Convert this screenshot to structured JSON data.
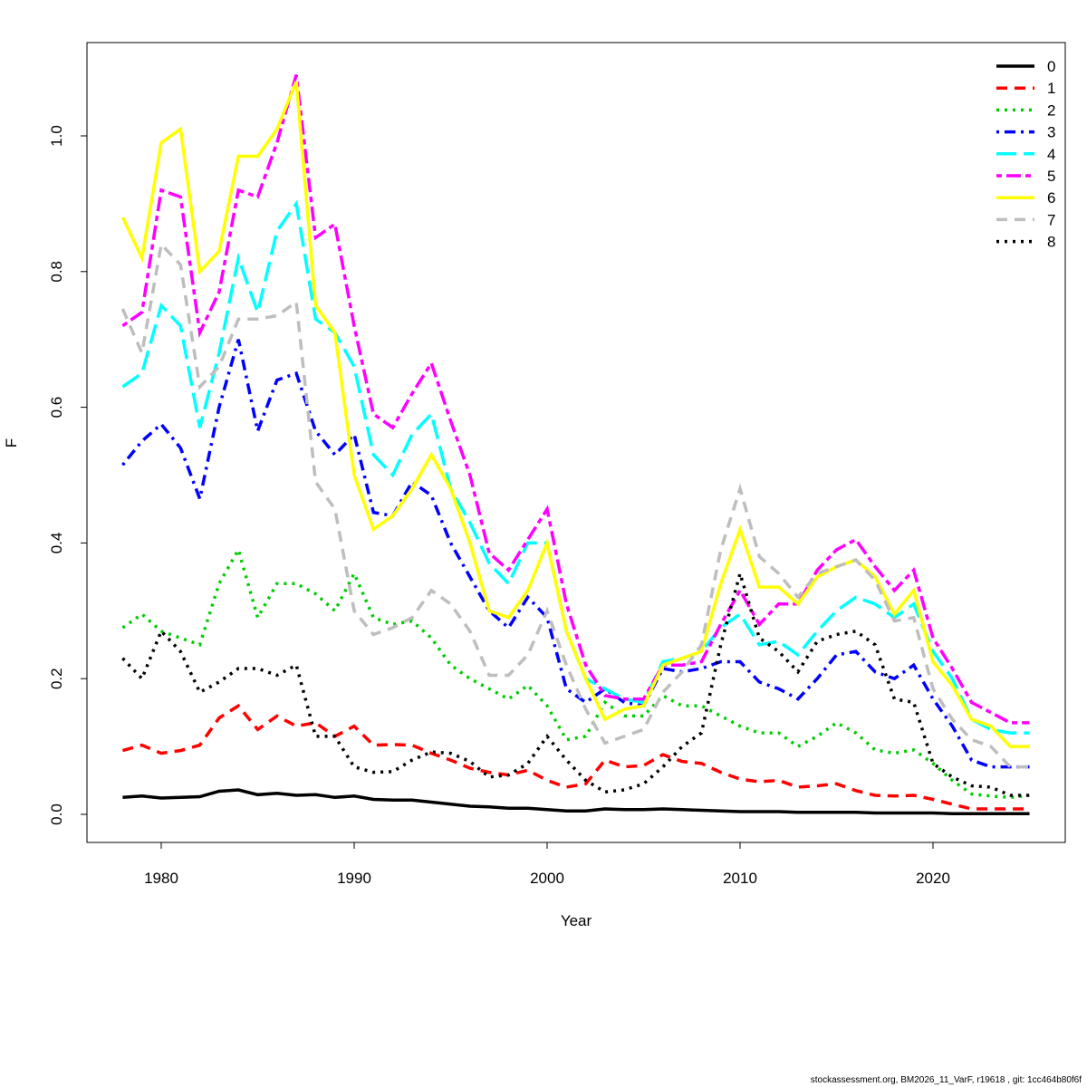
{
  "chart_data": {
    "type": "line",
    "title": "",
    "xlabel": "Year",
    "ylabel": "F",
    "xlim": [
      1976,
      2027
    ],
    "ylim": [
      -0.04,
      1.13
    ],
    "xticks": [
      1980,
      1990,
      2000,
      2010,
      2020
    ],
    "yticks": [
      "0.0",
      "0.2",
      "0.4",
      "0.6",
      "0.8",
      "1.0"
    ],
    "grid": false,
    "legend_position": "top-right",
    "x": [
      1978,
      1979,
      1980,
      1981,
      1982,
      1983,
      1984,
      1985,
      1986,
      1987,
      1988,
      1989,
      1990,
      1991,
      1992,
      1993,
      1994,
      1995,
      1996,
      1997,
      1998,
      1999,
      2000,
      2001,
      2002,
      2003,
      2004,
      2005,
      2006,
      2007,
      2008,
      2009,
      2010,
      2011,
      2012,
      2013,
      2014,
      2015,
      2016,
      2017,
      2018,
      2019,
      2020,
      2021,
      2022,
      2023,
      2024,
      2025
    ],
    "series": [
      {
        "name": "0",
        "color": "#000000",
        "dash": "solid",
        "values": [
          0.025,
          0.027,
          0.024,
          0.025,
          0.026,
          0.034,
          0.036,
          0.029,
          0.031,
          0.028,
          0.029,
          0.025,
          0.027,
          0.022,
          0.021,
          0.021,
          0.018,
          0.015,
          0.012,
          0.011,
          0.009,
          0.009,
          0.007,
          0.005,
          0.005,
          0.008,
          0.007,
          0.007,
          0.008,
          0.007,
          0.006,
          0.005,
          0.004,
          0.004,
          0.004,
          0.003,
          0.003,
          0.003,
          0.003,
          0.002,
          0.002,
          0.002,
          0.002,
          0.001,
          0.001,
          0.001,
          0.001,
          0.001
        ]
      },
      {
        "name": "1",
        "color": "#ff0000",
        "dash": "dashed",
        "values": [
          0.094,
          0.102,
          0.09,
          0.094,
          0.102,
          0.142,
          0.16,
          0.125,
          0.145,
          0.13,
          0.135,
          0.115,
          0.13,
          0.102,
          0.103,
          0.102,
          0.09,
          0.08,
          0.068,
          0.062,
          0.058,
          0.065,
          0.05,
          0.04,
          0.045,
          0.08,
          0.07,
          0.072,
          0.088,
          0.078,
          0.075,
          0.062,
          0.052,
          0.048,
          0.05,
          0.04,
          0.042,
          0.045,
          0.035,
          0.028,
          0.027,
          0.028,
          0.022,
          0.015,
          0.008,
          0.008,
          0.008,
          0.008
        ]
      },
      {
        "name": "2",
        "color": "#00cd00",
        "dash": "dotted",
        "values": [
          0.275,
          0.295,
          0.27,
          0.26,
          0.25,
          0.34,
          0.39,
          0.29,
          0.34,
          0.34,
          0.325,
          0.3,
          0.355,
          0.29,
          0.28,
          0.285,
          0.26,
          0.22,
          0.2,
          0.185,
          0.17,
          0.19,
          0.16,
          0.11,
          0.115,
          0.165,
          0.145,
          0.145,
          0.175,
          0.16,
          0.16,
          0.145,
          0.13,
          0.12,
          0.12,
          0.1,
          0.115,
          0.135,
          0.12,
          0.095,
          0.09,
          0.095,
          0.075,
          0.05,
          0.03,
          0.027,
          0.025,
          0.028
        ]
      },
      {
        "name": "3",
        "color": "#0000ff",
        "dash": "dotdash",
        "values": [
          0.515,
          0.55,
          0.575,
          0.54,
          0.465,
          0.6,
          0.7,
          0.565,
          0.64,
          0.65,
          0.565,
          0.53,
          0.56,
          0.445,
          0.44,
          0.49,
          0.47,
          0.4,
          0.35,
          0.3,
          0.275,
          0.32,
          0.29,
          0.185,
          0.165,
          0.185,
          0.165,
          0.16,
          0.215,
          0.21,
          0.215,
          0.225,
          0.225,
          0.195,
          0.185,
          0.17,
          0.2,
          0.235,
          0.24,
          0.21,
          0.2,
          0.22,
          0.17,
          0.13,
          0.08,
          0.07,
          0.07,
          0.07
        ]
      },
      {
        "name": "4",
        "color": "#00ffff",
        "dash": "longdash",
        "values": [
          0.63,
          0.65,
          0.75,
          0.72,
          0.57,
          0.68,
          0.82,
          0.74,
          0.86,
          0.9,
          0.73,
          0.71,
          0.66,
          0.53,
          0.5,
          0.56,
          0.59,
          0.48,
          0.43,
          0.37,
          0.34,
          0.4,
          0.4,
          0.27,
          0.2,
          0.185,
          0.17,
          0.165,
          0.225,
          0.23,
          0.24,
          0.275,
          0.295,
          0.25,
          0.255,
          0.235,
          0.27,
          0.3,
          0.32,
          0.31,
          0.29,
          0.31,
          0.24,
          0.2,
          0.14,
          0.125,
          0.12,
          0.12
        ]
      },
      {
        "name": "5",
        "color": "#ff00ff",
        "dash": "twodash",
        "values": [
          0.72,
          0.74,
          0.92,
          0.91,
          0.71,
          0.77,
          0.92,
          0.91,
          0.99,
          1.09,
          0.85,
          0.87,
          0.72,
          0.59,
          0.57,
          0.62,
          0.665,
          0.58,
          0.5,
          0.385,
          0.36,
          0.405,
          0.45,
          0.31,
          0.22,
          0.175,
          0.17,
          0.17,
          0.22,
          0.22,
          0.225,
          0.28,
          0.33,
          0.28,
          0.31,
          0.31,
          0.36,
          0.39,
          0.405,
          0.365,
          0.33,
          0.36,
          0.26,
          0.215,
          0.165,
          0.15,
          0.135,
          0.135
        ]
      },
      {
        "name": "6",
        "color": "#ffff00",
        "dash": "solid",
        "values": [
          0.88,
          0.82,
          0.99,
          1.01,
          0.8,
          0.83,
          0.97,
          0.97,
          1.01,
          1.08,
          0.75,
          0.71,
          0.5,
          0.42,
          0.44,
          0.48,
          0.53,
          0.48,
          0.4,
          0.3,
          0.29,
          0.33,
          0.4,
          0.27,
          0.2,
          0.14,
          0.155,
          0.16,
          0.22,
          0.23,
          0.24,
          0.34,
          0.42,
          0.335,
          0.335,
          0.31,
          0.35,
          0.365,
          0.375,
          0.35,
          0.295,
          0.33,
          0.225,
          0.19,
          0.14,
          0.13,
          0.1,
          0.1
        ]
      },
      {
        "name": "7",
        "color": "#bebebe",
        "dash": "dashed",
        "values": [
          0.745,
          0.68,
          0.84,
          0.81,
          0.63,
          0.66,
          0.73,
          0.73,
          0.735,
          0.755,
          0.49,
          0.45,
          0.3,
          0.265,
          0.275,
          0.29,
          0.33,
          0.31,
          0.27,
          0.205,
          0.205,
          0.235,
          0.3,
          0.22,
          0.155,
          0.105,
          0.115,
          0.125,
          0.18,
          0.21,
          0.25,
          0.39,
          0.48,
          0.38,
          0.355,
          0.32,
          0.355,
          0.365,
          0.375,
          0.345,
          0.285,
          0.29,
          0.185,
          0.14,
          0.11,
          0.1,
          0.07,
          0.07
        ]
      },
      {
        "name": "8",
        "color": "#000000",
        "dash": "dotted",
        "values": [
          0.23,
          0.2,
          0.27,
          0.24,
          0.18,
          0.195,
          0.215,
          0.215,
          0.205,
          0.22,
          0.115,
          0.115,
          0.07,
          0.062,
          0.063,
          0.08,
          0.092,
          0.09,
          0.078,
          0.055,
          0.058,
          0.075,
          0.115,
          0.08,
          0.05,
          0.033,
          0.036,
          0.045,
          0.07,
          0.1,
          0.12,
          0.25,
          0.355,
          0.26,
          0.24,
          0.21,
          0.255,
          0.265,
          0.27,
          0.25,
          0.17,
          0.165,
          0.075,
          0.055,
          0.042,
          0.04,
          0.028,
          0.028
        ]
      }
    ]
  },
  "footer": "stockassessment.org, BM2026_11_VarF, r19618 , git: 1cc464b80f6f"
}
